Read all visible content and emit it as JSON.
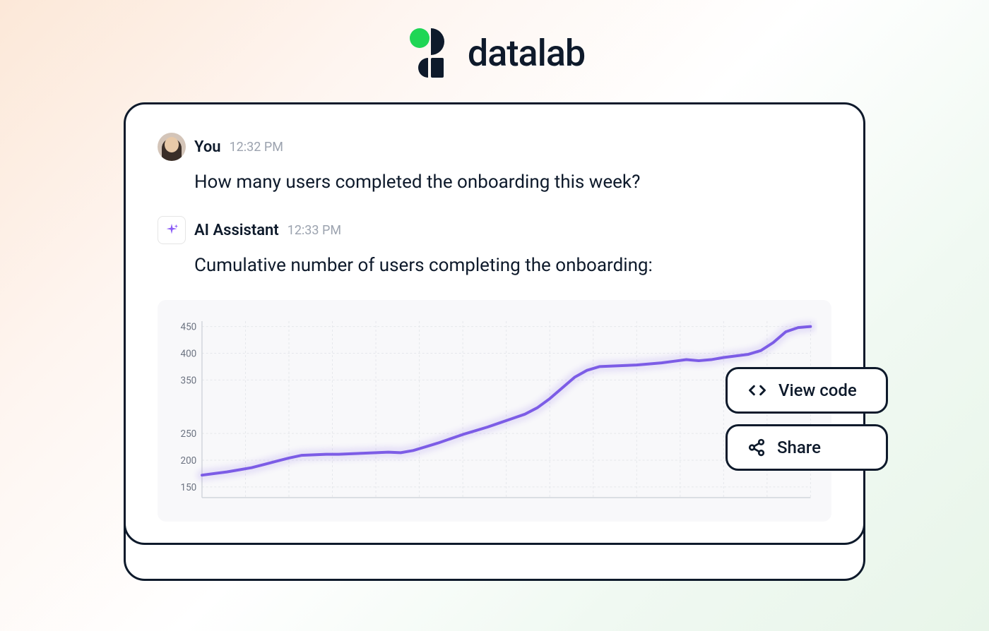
{
  "brand": {
    "name": "datalab",
    "logo_accent_color": "#1fd655",
    "logo_dark_color": "#0e1a2b"
  },
  "conversation": {
    "user_message": {
      "sender": "You",
      "timestamp": "12:32 PM",
      "text": "How many users completed the onboarding this week?"
    },
    "ai_message": {
      "sender": "AI Assistant",
      "timestamp": "12:33 PM",
      "text": "Cumulative number of users completing the onboarding:",
      "sparkle_color": "#8b5cf6"
    }
  },
  "chart": {
    "type": "line",
    "background_color": "#f8f8fa",
    "line_color": "#7c5ce6",
    "line_width": 4,
    "grid_color": "#e5e7eb",
    "y_axis": {
      "ticks": [
        150,
        200,
        250,
        350,
        400,
        450
      ],
      "min": 130,
      "max": 460
    },
    "data_points": [
      172,
      175,
      178,
      182,
      186,
      192,
      198,
      204,
      209,
      210,
      211,
      211,
      212,
      213,
      214,
      215,
      214,
      218,
      225,
      232,
      240,
      248,
      255,
      262,
      270,
      278,
      286,
      298,
      315,
      335,
      355,
      368,
      375,
      376,
      377,
      378,
      380,
      382,
      385,
      388,
      386,
      388,
      392,
      395,
      398,
      405,
      420,
      440,
      448,
      450
    ]
  },
  "actions": {
    "view_code": "View code",
    "share": "Share"
  },
  "colors": {
    "text_primary": "#0e1a2b",
    "text_secondary": "#9ca3af",
    "card_border": "#0e1a2b"
  }
}
